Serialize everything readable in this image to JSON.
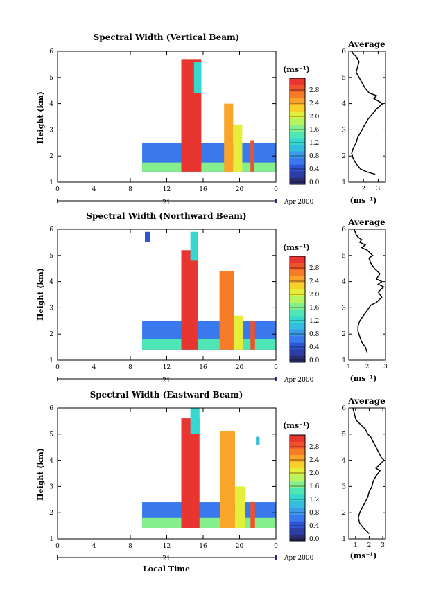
{
  "x_axis_title": "Local Time",
  "colorbar_ticks": [
    "0.0",
    "0.4",
    "0.8",
    "1.2",
    "1.6",
    "2.0",
    "2.4",
    "2.8"
  ],
  "colorbar_colors": [
    "#2b2d6e",
    "#2c3ea6",
    "#2f55d4",
    "#3a78ee",
    "#3b9be8",
    "#35bde0",
    "#35d8cf",
    "#4fe6b5",
    "#85ef8e",
    "#b7f45e",
    "#e5ee3a",
    "#f7d02a",
    "#f9a52a",
    "#f67c28",
    "#ef522a",
    "#e9352f"
  ],
  "chart_data": [
    {
      "type": "heatmap",
      "title": "Spectral Width (Vertical Beam)",
      "ylabel": "Height (km)",
      "xlim": [
        0,
        24
      ],
      "ylim": [
        1,
        6
      ],
      "x_ticks": [
        "0",
        "4",
        "8",
        "12",
        "16",
        "20",
        "0"
      ],
      "y_ticks": [
        "1",
        "2",
        "3",
        "4",
        "5",
        "6"
      ],
      "date_label": "21",
      "date_suffix": "Apr 2000",
      "colorbar_label": "(ms⁻¹)",
      "colorbar_range": [
        0,
        3.0
      ],
      "regions": [
        {
          "x0": 9.3,
          "x1": 24,
          "y0": 1.4,
          "y1": 2.5,
          "value": 0.7
        },
        {
          "x0": 9.3,
          "x1": 24,
          "y0": 1.4,
          "y1": 1.75,
          "value": 1.5
        },
        {
          "x0": 13.6,
          "x1": 15.8,
          "y0": 1.4,
          "y1": 5.7,
          "value": 2.9
        },
        {
          "x0": 15.0,
          "x1": 15.8,
          "y0": 4.4,
          "y1": 5.6,
          "value": 1.3
        },
        {
          "x0": 18.3,
          "x1": 19.3,
          "y0": 1.4,
          "y1": 4.0,
          "value": 2.4
        },
        {
          "x0": 19.3,
          "x1": 20.3,
          "y0": 1.4,
          "y1": 3.2,
          "value": 1.9
        },
        {
          "x0": 21.2,
          "x1": 21.6,
          "y0": 1.4,
          "y1": 2.6,
          "value": 2.8
        }
      ],
      "average": {
        "title": "Average",
        "xlim": [
          1,
          3.5
        ],
        "x_ticks": [
          "2",
          "3"
        ],
        "xlabel": "(ms⁻¹)",
        "y_ticks": [
          "1",
          "2",
          "3",
          "4",
          "5",
          "6"
        ],
        "x": [
          2.8,
          2.2,
          1.8,
          1.5,
          1.3,
          1.2,
          1.3,
          1.5,
          1.6,
          1.8,
          1.9,
          2.1,
          2.3,
          2.6,
          2.9,
          3.1,
          3.3,
          3.0,
          2.7,
          2.9,
          2.4,
          2.1,
          1.9,
          1.7,
          1.5,
          1.6,
          1.7,
          1.5,
          1.3,
          1.2
        ],
        "y": [
          1.3,
          1.4,
          1.5,
          1.7,
          1.9,
          2.1,
          2.3,
          2.5,
          2.7,
          2.9,
          3.0,
          3.2,
          3.4,
          3.6,
          3.8,
          3.9,
          4.0,
          4.1,
          4.2,
          4.3,
          4.4,
          4.6,
          4.8,
          5.0,
          5.2,
          5.4,
          5.6,
          5.8,
          5.9,
          6.0
        ]
      }
    },
    {
      "type": "heatmap",
      "title": "Spectral Width (Northward Beam)",
      "ylabel": "Height (km)",
      "xlim": [
        0,
        24
      ],
      "ylim": [
        1,
        6
      ],
      "x_ticks": [
        "0",
        "4",
        "8",
        "12",
        "16",
        "20",
        "0"
      ],
      "y_ticks": [
        "1",
        "2",
        "3",
        "4",
        "5",
        "6"
      ],
      "date_label": "21",
      "date_suffix": "Apr 2000",
      "colorbar_label": "(ms⁻¹)",
      "colorbar_range": [
        0,
        3.0
      ],
      "regions": [
        {
          "x0": 9.3,
          "x1": 24,
          "y0": 1.4,
          "y1": 2.5,
          "value": 0.7
        },
        {
          "x0": 9.3,
          "x1": 24,
          "y0": 1.4,
          "y1": 1.8,
          "value": 1.4
        },
        {
          "x0": 13.6,
          "x1": 15.4,
          "y0": 1.4,
          "y1": 5.2,
          "value": 2.9
        },
        {
          "x0": 14.6,
          "x1": 15.4,
          "y0": 4.8,
          "y1": 5.9,
          "value": 1.2
        },
        {
          "x0": 17.8,
          "x1": 19.4,
          "y0": 1.4,
          "y1": 4.4,
          "value": 2.5
        },
        {
          "x0": 19.4,
          "x1": 20.4,
          "y0": 1.4,
          "y1": 2.7,
          "value": 1.9
        },
        {
          "x0": 21.2,
          "x1": 21.7,
          "y0": 1.4,
          "y1": 2.5,
          "value": 2.8
        },
        {
          "x0": 9.6,
          "x1": 10.2,
          "y0": 5.5,
          "y1": 5.9,
          "value": 0.5
        }
      ],
      "average": {
        "title": "Average",
        "xlim": [
          1,
          3
        ],
        "x_ticks": [
          "1",
          "2",
          "3"
        ],
        "xlabel": "(ms⁻¹)",
        "y_ticks": [
          "1",
          "2",
          "3",
          "4",
          "5",
          "6"
        ],
        "x": [
          2.0,
          1.9,
          1.7,
          1.6,
          1.5,
          1.5,
          1.6,
          1.8,
          2.0,
          2.2,
          2.5,
          2.8,
          2.6,
          2.9,
          2.6,
          2.8,
          2.5,
          2.7,
          2.4,
          2.2,
          2.1,
          2.3,
          2.0,
          1.7,
          1.9,
          1.6,
          1.7,
          1.5,
          1.4,
          1.3
        ],
        "y": [
          1.3,
          1.5,
          1.7,
          1.9,
          2.1,
          2.3,
          2.5,
          2.7,
          2.9,
          3.1,
          3.2,
          3.4,
          3.6,
          3.8,
          3.9,
          4.0,
          4.1,
          4.3,
          4.5,
          4.7,
          4.9,
          5.0,
          5.2,
          5.3,
          5.4,
          5.5,
          5.6,
          5.7,
          5.8,
          6.0
        ]
      }
    },
    {
      "type": "heatmap",
      "title": "Spectral Width (Eastward Beam)",
      "ylabel": "Height (km)",
      "xlim": [
        0,
        24
      ],
      "ylim": [
        1,
        6
      ],
      "x_ticks": [
        "0",
        "4",
        "8",
        "12",
        "16",
        "20",
        "0"
      ],
      "y_ticks": [
        "1",
        "2",
        "3",
        "4",
        "5",
        "6"
      ],
      "date_label": "21",
      "date_suffix": "Apr 2000",
      "colorbar_label": "(ms⁻¹)",
      "colorbar_range": [
        0,
        3.0
      ],
      "regions": [
        {
          "x0": 9.3,
          "x1": 24,
          "y0": 1.4,
          "y1": 2.4,
          "value": 0.7
        },
        {
          "x0": 9.3,
          "x1": 24,
          "y0": 1.4,
          "y1": 1.8,
          "value": 1.5
        },
        {
          "x0": 13.6,
          "x1": 15.6,
          "y0": 1.4,
          "y1": 5.6,
          "value": 2.9
        },
        {
          "x0": 14.6,
          "x1": 15.6,
          "y0": 5.0,
          "y1": 6.0,
          "value": 1.2
        },
        {
          "x0": 17.9,
          "x1": 19.5,
          "y0": 1.4,
          "y1": 5.1,
          "value": 2.4
        },
        {
          "x0": 19.5,
          "x1": 20.6,
          "y0": 1.4,
          "y1": 3.0,
          "value": 1.9
        },
        {
          "x0": 21.2,
          "x1": 21.7,
          "y0": 1.4,
          "y1": 2.4,
          "value": 2.7
        },
        {
          "x0": 21.8,
          "x1": 22.2,
          "y0": 4.6,
          "y1": 4.9,
          "value": 1.0
        }
      ],
      "average": {
        "title": "Average",
        "xlim": [
          0.5,
          3.2
        ],
        "x_ticks": [
          "1",
          "2",
          "3"
        ],
        "xlabel": "(ms⁻¹)",
        "y_ticks": [
          "1",
          "2",
          "3",
          "4",
          "5",
          "6"
        ],
        "x": [
          2.0,
          1.6,
          1.3,
          1.2,
          1.3,
          1.5,
          1.7,
          1.9,
          2.0,
          2.2,
          2.3,
          2.5,
          2.8,
          2.5,
          2.7,
          2.9,
          3.1,
          2.9,
          2.7,
          2.5,
          2.3,
          2.1,
          1.9,
          1.7,
          1.5,
          1.3,
          1.1,
          1.0,
          0.9,
          0.8
        ],
        "y": [
          1.2,
          1.4,
          1.6,
          1.8,
          2.0,
          2.2,
          2.4,
          2.6,
          2.8,
          3.0,
          3.2,
          3.4,
          3.6,
          3.7,
          3.8,
          3.9,
          4.0,
          4.1,
          4.3,
          4.5,
          4.7,
          4.9,
          5.0,
          5.2,
          5.3,
          5.4,
          5.5,
          5.6,
          5.8,
          6.0
        ]
      }
    }
  ]
}
